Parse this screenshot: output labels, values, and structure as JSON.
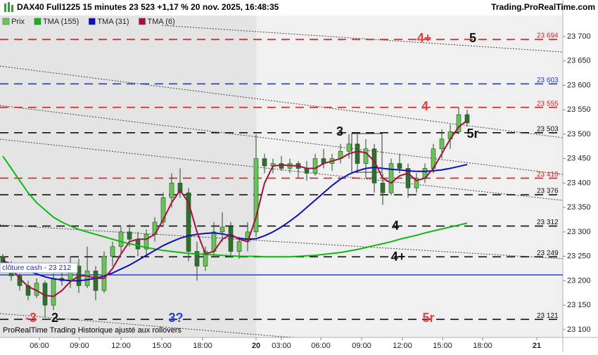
{
  "header": {
    "title": "DAX40 Full1225 15 minutes 23 523 +1,17 % 20 nov. 2025, 16:48:35",
    "site": "Trading.ProRealTime.com"
  },
  "footer": "ProRealTime Trading  Historique ajusté aux rollovers",
  "chart_data": {
    "type": "candlestick",
    "price_name": "Prix",
    "up_color": "#6cc25a",
    "down_color": "#2f6f2f",
    "x": [
      1,
      4,
      7,
      10,
      13,
      16,
      19,
      22,
      25,
      28,
      31,
      34,
      37,
      40,
      43,
      46,
      49,
      52,
      55,
      58,
      61,
      64,
      67,
      70,
      73,
      76,
      79,
      82,
      85,
      88,
      91,
      94,
      97,
      100,
      103,
      106,
      109,
      112,
      115,
      118,
      121,
      124,
      127,
      130,
      133,
      136,
      139,
      142,
      145,
      148,
      151,
      154,
      157,
      160,
      163,
      166
    ],
    "ohlc": [
      [
        23250,
        23255,
        23230,
        23235
      ],
      [
        23235,
        23240,
        23200,
        23210
      ],
      [
        23210,
        23215,
        23180,
        23190
      ],
      [
        23190,
        23200,
        23160,
        23170
      ],
      [
        23170,
        23205,
        23165,
        23195
      ],
      [
        23195,
        23200,
        23125,
        23150
      ],
      [
        23150,
        23215,
        23140,
        23205
      ],
      [
        23205,
        23230,
        23190,
        23200
      ],
      [
        23200,
        23250,
        23185,
        23230
      ],
      [
        23230,
        23245,
        23175,
        23190
      ],
      [
        23190,
        23270,
        23185,
        23220
      ],
      [
        23220,
        23230,
        23160,
        23180
      ],
      [
        23180,
        23260,
        23175,
        23250
      ],
      [
        23250,
        23280,
        23230,
        23270
      ],
      [
        23270,
        23310,
        23255,
        23300
      ],
      [
        23300,
        23315,
        23270,
        23285
      ],
      [
        23285,
        23300,
        23250,
        23265
      ],
      [
        23265,
        23305,
        23250,
        23295
      ],
      [
        23295,
        23330,
        23280,
        23320
      ],
      [
        23320,
        23380,
        23310,
        23370
      ],
      [
        23370,
        23420,
        23350,
        23400
      ],
      [
        23400,
        23430,
        23370,
        23380
      ],
      [
        23380,
        23390,
        23240,
        23260
      ],
      [
        23260,
        23280,
        23200,
        23230
      ],
      [
        23230,
        23270,
        23220,
        23260
      ],
      [
        23260,
        23320,
        23250,
        23300
      ],
      [
        23300,
        23340,
        23280,
        23310
      ],
      [
        23310,
        23320,
        23250,
        23260
      ],
      [
        23260,
        23290,
        23245,
        23280
      ],
      [
        23280,
        23320,
        23260,
        23300
      ],
      [
        23300,
        23500,
        23290,
        23450
      ],
      [
        23450,
        23460,
        23420,
        23435
      ],
      [
        23435,
        23450,
        23420,
        23440
      ],
      [
        23440,
        23455,
        23425,
        23430
      ],
      [
        23430,
        23450,
        23420,
        23440
      ],
      [
        23440,
        23445,
        23410,
        23430
      ],
      [
        23430,
        23445,
        23405,
        23420
      ],
      [
        23420,
        23460,
        23415,
        23450
      ],
      [
        23450,
        23470,
        23430,
        23440
      ],
      [
        23440,
        23460,
        23425,
        23450
      ],
      [
        23450,
        23480,
        23440,
        23465
      ],
      [
        23465,
        23500,
        23450,
        23480
      ],
      [
        23480,
        23500,
        23420,
        23440
      ],
      [
        23440,
        23490,
        23410,
        23470
      ],
      [
        23470,
        23480,
        23380,
        23400
      ],
      [
        23400,
        23420,
        23355,
        23380
      ],
      [
        23380,
        23450,
        23375,
        23440
      ],
      [
        23440,
        23460,
        23420,
        23430
      ],
      [
        23430,
        23440,
        23370,
        23390
      ],
      [
        23390,
        23420,
        23380,
        23410
      ],
      [
        23410,
        23440,
        23400,
        23430
      ],
      [
        23430,
        23480,
        23420,
        23470
      ],
      [
        23470,
        23510,
        23450,
        23490
      ],
      [
        23490,
        23520,
        23470,
        23505
      ],
      [
        23505,
        23555,
        23500,
        23540
      ],
      [
        23540,
        23550,
        23515,
        23523
      ]
    ],
    "series": [
      {
        "name": "TMA (155)",
        "color": "#12b812",
        "values": [
          23455,
          23430,
          23405,
          23380,
          23360,
          23345,
          23330,
          23320,
          23312,
          23305,
          23300,
          23295,
          23290,
          23285,
          23280,
          23276,
          23272,
          23268,
          23265,
          23262,
          23260,
          23258,
          23256,
          23255,
          23254,
          23253,
          23252,
          23251,
          23250,
          23250,
          23250,
          23249,
          23249,
          23249,
          23249,
          23250,
          23251,
          23252,
          23254,
          23256,
          23258,
          23261,
          23264,
          23268,
          23272,
          23276,
          23280,
          23285,
          23289,
          23293,
          23298,
          23302,
          23306,
          23310,
          23314,
          23318
        ]
      },
      {
        "name": "TMA (31)",
        "color": "#1010b4",
        "values": [
          23240,
          23235,
          23228,
          23220,
          23214,
          23208,
          23204,
          23202,
          23200,
          23200,
          23202,
          23205,
          23210,
          23216,
          23224,
          23232,
          23242,
          23252,
          23262,
          23272,
          23280,
          23287,
          23292,
          23295,
          23297,
          23298,
          23296,
          23292,
          23287,
          23285,
          23286,
          23292,
          23300,
          23310,
          23322,
          23335,
          23350,
          23365,
          23380,
          23395,
          23408,
          23418,
          23425,
          23430,
          23432,
          23430,
          23428,
          23427,
          23425,
          23424,
          23424,
          23425,
          23427,
          23430,
          23434,
          23438
        ]
      },
      {
        "name": "TMA (6)",
        "color": "#a3123e",
        "values": [
          23245,
          23225,
          23205,
          23188,
          23180,
          23170,
          23168,
          23180,
          23198,
          23210,
          23210,
          23205,
          23205,
          23225,
          23255,
          23280,
          23285,
          23285,
          23295,
          23325,
          23360,
          23385,
          23360,
          23300,
          23255,
          23260,
          23285,
          23295,
          23285,
          23280,
          23330,
          23400,
          23435,
          23437,
          23436,
          23435,
          23430,
          23430,
          23440,
          23445,
          23450,
          23460,
          23465,
          23462,
          23445,
          23410,
          23400,
          23415,
          23420,
          23405,
          23410,
          23430,
          23460,
          23490,
          23515,
          23528
        ]
      }
    ],
    "xlim": [
      0,
      200
    ],
    "xticks": [
      {
        "value": 14,
        "label": "06:00"
      },
      {
        "value": 28.25,
        "label": "09:00"
      },
      {
        "value": 43,
        "label": "12:00"
      },
      {
        "value": 57.5,
        "label": "15:00"
      },
      {
        "value": 72,
        "label": "18:00"
      },
      {
        "value": 91,
        "label": "20"
      },
      {
        "value": 100,
        "label": "03:00"
      },
      {
        "value": 114,
        "label": "06:00"
      },
      {
        "value": 128.5,
        "label": "09:00"
      },
      {
        "value": 143,
        "label": "12:00"
      },
      {
        "value": 157.25,
        "label": "15:00"
      },
      {
        "value": 171.5,
        "label": "18:00"
      },
      {
        "value": 190.75,
        "label": "21"
      }
    ],
    "ylim": [
      23084,
      23743
    ],
    "yticks": [
      {
        "value": 23100,
        "label": "23 100"
      },
      {
        "value": 23150,
        "label": "23 150"
      },
      {
        "value": 23200,
        "label": "23 200"
      },
      {
        "value": 23250,
        "label": "23 250"
      },
      {
        "value": 23300,
        "label": "23 300"
      },
      {
        "value": 23350,
        "label": "23 350"
      },
      {
        "value": 23400,
        "label": "23 400"
      },
      {
        "value": 23450,
        "label": "23 450"
      },
      {
        "value": 23500,
        "label": "23 500"
      },
      {
        "value": 23550,
        "label": "23 550"
      },
      {
        "value": 23600,
        "label": "23 600"
      },
      {
        "value": 23650,
        "label": "23 650"
      },
      {
        "value": 23700,
        "label": "23 700"
      }
    ],
    "levels": [
      {
        "value": 23694,
        "label": "23 694",
        "color": "#e02020"
      },
      {
        "value": 23603,
        "label": "23 603",
        "color": "#1a3fd0"
      },
      {
        "value": 23555,
        "label": "23 555",
        "color": "#e02020"
      },
      {
        "value": 23503,
        "label": "23 503",
        "color": "#111111"
      },
      {
        "value": 23410,
        "label": "23 410",
        "color": "#e02020"
      },
      {
        "value": 23376,
        "label": "23 376",
        "color": "#111111"
      },
      {
        "value": 23312,
        "label": "23 312",
        "color": "#111111"
      },
      {
        "value": 23249,
        "label": "23 249",
        "color": "#111111"
      },
      {
        "value": 23121,
        "label": "23 121",
        "color": "#111111"
      }
    ],
    "close_line": {
      "value": 23212,
      "label": "clôture cash - 23 212",
      "color": "#1a2fd0"
    },
    "annotations": [
      {
        "text": "4+",
        "color": "#e84040"
      },
      {
        "text": "5",
        "color": "#111111"
      },
      {
        "text": "4",
        "color": "#e84040"
      },
      {
        "text": "3",
        "color": "#111111"
      },
      {
        "text": "5r",
        "color": "#111111"
      },
      {
        "text": "4",
        "color": "#111111"
      },
      {
        "text": "4+",
        "color": "#111111"
      },
      {
        "text": "-3",
        "color": "#e84040"
      },
      {
        "text": "2",
        "color": "#111111"
      },
      {
        "text": "3?",
        "color": "#2a3fd8"
      },
      {
        "text": "5r",
        "color": "#e84040"
      }
    ]
  }
}
